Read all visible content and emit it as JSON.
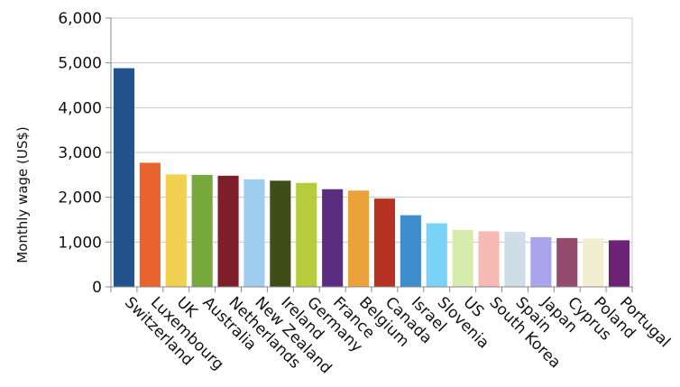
{
  "chart_data": {
    "type": "bar",
    "title": "",
    "xlabel": "",
    "ylabel": "Monthly  wage  (US$)",
    "ylim": [
      0,
      6000
    ],
    "yticks": [
      0,
      1000,
      2000,
      3000,
      4000,
      5000,
      6000
    ],
    "ytick_labels": [
      "0",
      "1,000",
      "2,000",
      "3,000",
      "4,000",
      "5,000",
      "6,000"
    ],
    "grid": true,
    "legend": "none",
    "categories": [
      "Switzerland",
      "Luxembourg",
      "UK",
      "Australia",
      "Netherlands",
      "New Zealand",
      "Ireland",
      "Germany",
      "France",
      "Belgium",
      "Canada",
      "Israel",
      "Slovenia",
      "US",
      "South Korea",
      "Spain",
      "Japan",
      "Cyprus",
      "Poland",
      "Portugal"
    ],
    "values": [
      4880,
      2770,
      2510,
      2500,
      2480,
      2400,
      2370,
      2320,
      2180,
      2150,
      1970,
      1600,
      1420,
      1270,
      1240,
      1230,
      1110,
      1090,
      1080,
      1040
    ],
    "colors": [
      "#24528c",
      "#e8632e",
      "#f2d04f",
      "#76a83c",
      "#7e1e2a",
      "#9fcdf0",
      "#3f4d18",
      "#b7cc3c",
      "#5a2d80",
      "#eba23a",
      "#b83224",
      "#3d8dcf",
      "#79d3f6",
      "#d7ecac",
      "#f6b9b4",
      "#cfdde7",
      "#a8a5ec",
      "#944b6e",
      "#f2efd1",
      "#6d2376"
    ]
  }
}
